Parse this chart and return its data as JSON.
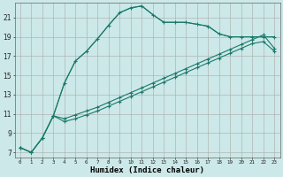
{
  "xlabel": "Humidex (Indice chaleur)",
  "background_color": "#cce8e8",
  "grid_color": "#aaaaaa",
  "line_color": "#1a7a6a",
  "xlim": [
    -0.5,
    23.5
  ],
  "ylim": [
    6.5,
    22.5
  ],
  "xticks": [
    0,
    1,
    2,
    3,
    4,
    5,
    6,
    7,
    8,
    9,
    10,
    11,
    12,
    13,
    14,
    15,
    16,
    17,
    18,
    19,
    20,
    21,
    22,
    23
  ],
  "yticks": [
    7,
    9,
    11,
    13,
    15,
    17,
    19,
    21
  ],
  "line1_x": [
    0,
    1,
    2,
    3,
    4,
    5,
    6,
    7,
    8,
    9,
    10,
    11,
    12,
    13,
    14,
    15,
    16,
    17,
    18,
    19,
    20,
    21,
    22,
    23
  ],
  "line1_y": [
    7.5,
    7.0,
    8.5,
    10.8,
    14.2,
    16.5,
    17.5,
    18.8,
    20.2,
    21.5,
    22.0,
    22.2,
    21.3,
    20.5,
    20.5,
    20.5,
    20.3,
    20.1,
    19.3,
    19.0,
    19.0,
    19.0,
    19.0,
    19.0
  ],
  "line2_x": [
    3,
    4,
    5,
    6,
    7,
    8,
    9,
    10,
    11,
    12,
    13,
    14,
    15,
    16,
    17,
    18,
    19,
    20,
    21,
    22,
    23
  ],
  "line2_y": [
    10.8,
    14.2,
    16.5,
    17.5,
    18.8,
    20.2,
    21.5,
    22.0,
    22.2,
    21.3,
    20.5,
    20.5,
    20.5,
    20.3,
    20.1,
    19.3,
    19.0,
    19.0,
    19.0,
    19.0,
    19.0
  ],
  "line3_x": [
    0,
    1,
    2,
    3,
    4,
    5,
    6,
    7,
    8,
    9,
    10,
    11,
    12,
    13,
    14,
    15,
    16,
    17,
    18,
    19,
    20,
    21,
    22,
    23
  ],
  "line3_y": [
    7.5,
    7.0,
    8.5,
    10.8,
    10.2,
    10.5,
    10.9,
    11.3,
    11.8,
    12.3,
    12.8,
    13.3,
    13.8,
    14.3,
    14.8,
    15.3,
    15.8,
    16.3,
    16.8,
    17.3,
    17.8,
    18.3,
    18.5,
    17.5
  ],
  "line4_x": [
    0,
    1,
    2,
    3,
    4,
    5,
    6,
    7,
    8,
    9,
    10,
    11,
    12,
    13,
    14,
    15,
    16,
    17,
    18,
    19,
    20,
    21,
    22,
    23
  ],
  "line4_y": [
    7.5,
    7.0,
    8.5,
    10.8,
    10.5,
    10.9,
    11.3,
    11.7,
    12.2,
    12.7,
    13.2,
    13.7,
    14.2,
    14.7,
    15.2,
    15.7,
    16.2,
    16.7,
    17.2,
    17.7,
    18.2,
    18.7,
    19.2,
    17.8
  ]
}
